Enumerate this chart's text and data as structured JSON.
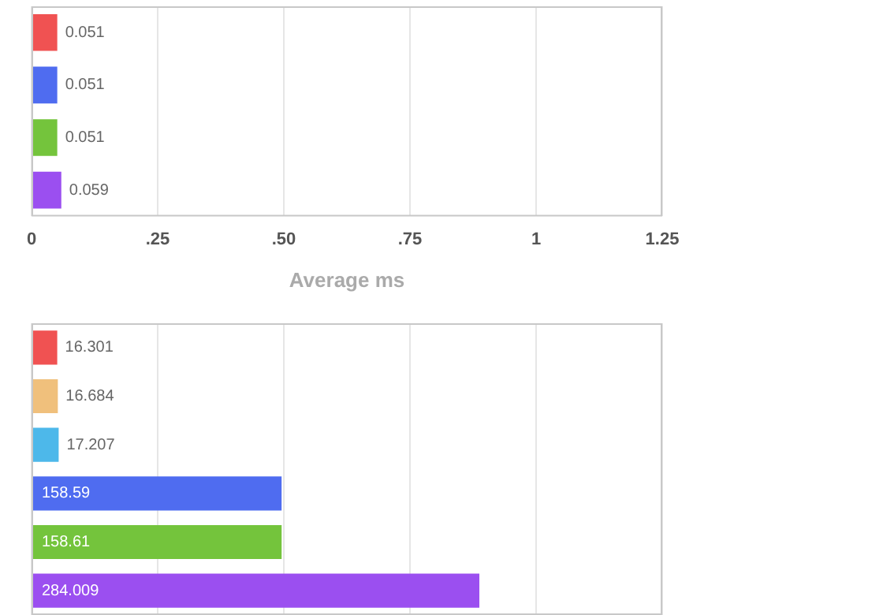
{
  "chart_data": [
    {
      "type": "bar",
      "orientation": "horizontal",
      "categories": [
        null,
        null,
        null,
        null
      ],
      "values": [
        0.051,
        0.051,
        0.051,
        0.059
      ],
      "colors": [
        "#f05252",
        "#4f6cf0",
        "#74c43c",
        "#9b4ff0"
      ],
      "data_labels": true,
      "grid": "x",
      "tick_labels": "x",
      "xlabel": "Average ms",
      "xlim": [
        0,
        1.25
      ],
      "xticks": [
        0,
        {
          "value": 0.25,
          "label": ".25"
        },
        {
          "value": 0.5,
          "label": ".50"
        },
        {
          "value": 0.75,
          "label": ".75"
        },
        1,
        1.25
      ]
    },
    {
      "type": "bar",
      "orientation": "horizontal",
      "categories": [
        null,
        null,
        null,
        null,
        null,
        null
      ],
      "values": [
        16.301,
        16.684,
        17.207,
        158.59,
        158.61,
        284.009
      ],
      "colors": [
        "#f05252",
        "#f0c07c",
        "#4db8ea",
        "#4f6cf0",
        "#74c43c",
        "#9b4ff0"
      ],
      "data_labels": true,
      "grid": "x",
      "tick_labels": false,
      "xlim": [
        0,
        400
      ],
      "xticks": [
        {
          "value": 0,
          "label": null
        },
        {
          "value": 80,
          "label": null
        },
        {
          "value": 160,
          "label": null
        },
        {
          "value": 240,
          "label": null
        },
        {
          "value": 320,
          "label": null
        },
        {
          "value": 400,
          "label": null
        }
      ]
    }
  ]
}
